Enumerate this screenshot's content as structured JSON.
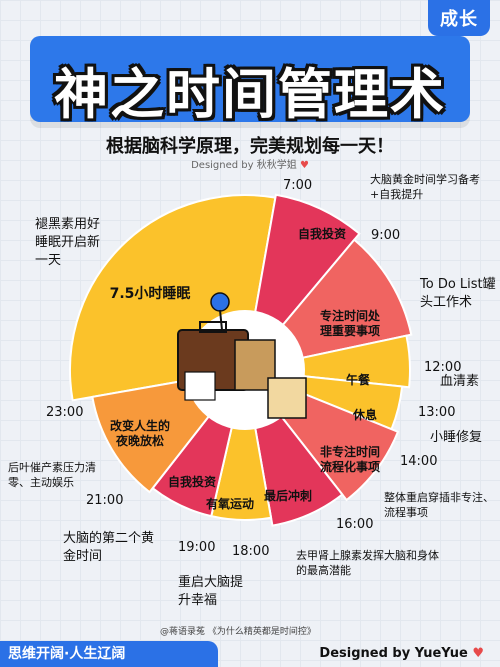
{
  "tag": "成长",
  "title": "神之时间管理术",
  "subtitle": "根据脑科学原理，完美规划每一天！",
  "credit": "Designed by 秋秋学姐",
  "times": {
    "t700": "7:00",
    "t900": "9:00",
    "t1200": "12:00",
    "t1300": "13:00",
    "t1400": "14:00",
    "t1600": "16:00",
    "t1800": "18:00",
    "t1900": "19:00",
    "t2100": "21:00",
    "t2300": "23:00"
  },
  "segments": {
    "sleep": "7.5小时睡眠",
    "study1": "自我投资",
    "focus": "专注时间处理重要事项",
    "lunch": "午餐",
    "nap": "休息",
    "nonfocus": "非专注时间流程化事项",
    "sprint": "最后冲刺",
    "exercise": "有氧运动",
    "study2": "自我投资",
    "relax": "改变人生的夜晚放松"
  },
  "notes": {
    "wake": "褪黑素用好睡眠开启新一天",
    "brain_gold": "大脑黄金时间学习备考+自我提升",
    "todo": "To Do List罐头工作术",
    "blood": "血清素",
    "napnote": "小睡修复",
    "restart": "整体重启穿插非专注、流程事项",
    "adrenaline": "去甲肾上腺素发挥大脑和身体的最高潜能",
    "restart_brain": "重启大脑提升幸福",
    "second_gold": "大脑的第二个黄金时间",
    "afterwork": "后叶催产素压力清零、主动娱乐"
  },
  "bottom_bar": "思维开阔·人生辽阔",
  "signature": "Designed by YueYue",
  "watermark": "@蒋语录菟 《为什么精英都是时间控》",
  "colors": {
    "yellow": "#fbc22b",
    "crimson": "#e3365a",
    "coral": "#f06461",
    "orange": "#f7993b",
    "accent_blue": "#2b71e6"
  }
}
